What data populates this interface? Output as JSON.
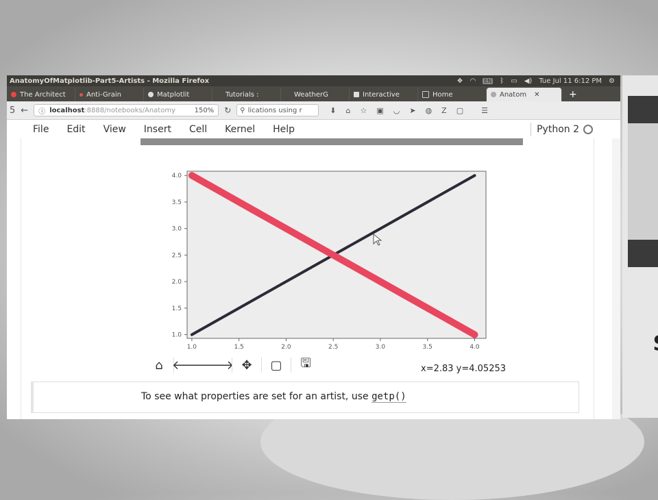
{
  "os": {
    "clock": "Tue Jul 11  6:12 PM",
    "tray_icons": [
      "dropbox-icon",
      "wifi-icon",
      "keyboard-icon",
      "bluetooth-icon",
      "battery-icon",
      "volume-icon",
      "gear-icon"
    ],
    "keyboard_label": "EN"
  },
  "window": {
    "title": "AnatomyOfMatplotlib-Part5-Artists - Mozilla Firefox"
  },
  "tabs": [
    {
      "label": "The Architect"
    },
    {
      "label": "Anti-Grain"
    },
    {
      "label": "Matplotlit"
    },
    {
      "label": "Tutorials :"
    },
    {
      "label": "WeatherG"
    },
    {
      "label": "Interactive"
    },
    {
      "label": "Home"
    },
    {
      "label": "Anatom",
      "active": true
    }
  ],
  "navbar": {
    "url_host": "localhost",
    "url_path": ":8888/notebooks/Anatomy",
    "zoom": "150%",
    "search_value": "lications using r"
  },
  "menu": {
    "items": [
      "File",
      "Edit",
      "View",
      "Insert",
      "Cell",
      "Kernel",
      "Help"
    ],
    "kernel_name": "Python 2"
  },
  "chart_data": {
    "type": "line",
    "xlim": [
      0.95,
      4.12
    ],
    "ylim": [
      0.93,
      4.08
    ],
    "xticks": [
      "1.0",
      "1.5",
      "2.0",
      "2.5",
      "3.0",
      "3.5",
      "4.0"
    ],
    "yticks": [
      "1.0",
      "1.5",
      "2.0",
      "2.5",
      "3.0",
      "3.5",
      "4.0"
    ],
    "series": [
      {
        "x": [
          1,
          2,
          3,
          4
        ],
        "y": [
          1,
          2,
          3,
          4
        ],
        "color": "#2b2a36",
        "linewidth": "thin"
      },
      {
        "x": [
          1,
          2,
          3,
          4
        ],
        "y": [
          4,
          3,
          2,
          1
        ],
        "color": "#e8475f",
        "linewidth": "thick"
      }
    ],
    "title": "",
    "xlabel": "",
    "ylabel": "",
    "grid": false
  },
  "plot_toolbar": {
    "buttons": [
      "home-icon",
      "back-arrow-icon",
      "forward-arrow-icon",
      "pan-icon",
      "zoom-rect-icon",
      "save-icon"
    ],
    "coords": "x=2.83  y=4.05253"
  },
  "markdown": {
    "text": "To see what properties are set for an artist, use ",
    "code": "getp()"
  }
}
